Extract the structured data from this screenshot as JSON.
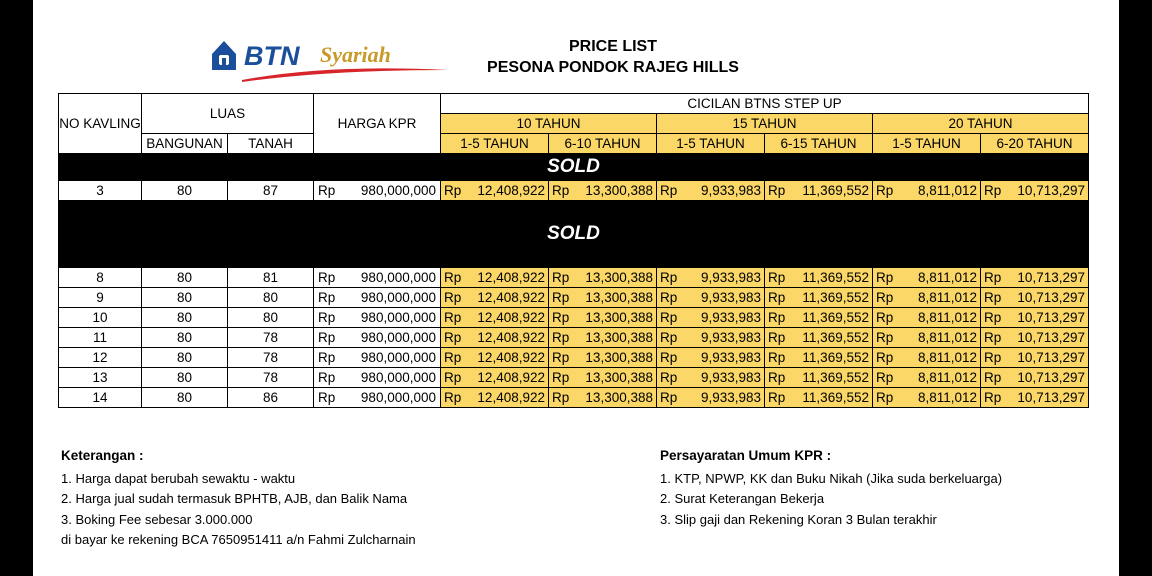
{
  "logo": {
    "brand": "BTN",
    "sub": "Syariah",
    "colors": {
      "blue": "#1b4f9c",
      "gold": "#c89a2a",
      "red": "#d6262b"
    }
  },
  "title": {
    "line1": "PRICE LIST",
    "line2": "PESONA PONDOK RAJEG HILLS"
  },
  "table": {
    "headers": {
      "no": "NO KAVLING",
      "luas": "LUAS",
      "bangunan": "BANGUNAN",
      "tanah": "TANAH",
      "harga": "HARGA KPR",
      "cicilan": "CICILAN BTNS STEP UP",
      "t10": "10 TAHUN",
      "t15": "15 TAHUN",
      "t20": "20 TAHUN",
      "sub": [
        "1-5 TAHUN",
        "6-10 TAHUN",
        "1-5 TAHUN",
        "6-15 TAHUN",
        "1-5 TAHUN",
        "6-20 TAHUN"
      ]
    },
    "sold_label": "SOLD",
    "currency": "Rp",
    "rows": [
      {
        "sold": true
      },
      {
        "no": "3",
        "bangunan": "80",
        "tanah": "87",
        "harga": "980,000,000",
        "c": [
          "12,408,922",
          "13,300,388",
          "9,933,983",
          "11,369,552",
          "8,811,012",
          "10,713,297"
        ]
      },
      {
        "sold": true,
        "tall": true
      },
      {
        "no": "8",
        "bangunan": "80",
        "tanah": "81",
        "harga": "980,000,000",
        "c": [
          "12,408,922",
          "13,300,388",
          "9,933,983",
          "11,369,552",
          "8,811,012",
          "10,713,297"
        ]
      },
      {
        "no": "9",
        "bangunan": "80",
        "tanah": "80",
        "harga": "980,000,000",
        "c": [
          "12,408,922",
          "13,300,388",
          "9,933,983",
          "11,369,552",
          "8,811,012",
          "10,713,297"
        ]
      },
      {
        "no": "10",
        "bangunan": "80",
        "tanah": "80",
        "harga": "980,000,000",
        "c": [
          "12,408,922",
          "13,300,388",
          "9,933,983",
          "11,369,552",
          "8,811,012",
          "10,713,297"
        ]
      },
      {
        "no": "11",
        "bangunan": "80",
        "tanah": "78",
        "harga": "980,000,000",
        "c": [
          "12,408,922",
          "13,300,388",
          "9,933,983",
          "11,369,552",
          "8,811,012",
          "10,713,297"
        ]
      },
      {
        "no": "12",
        "bangunan": "80",
        "tanah": "78",
        "harga": "980,000,000",
        "c": [
          "12,408,922",
          "13,300,388",
          "9,933,983",
          "11,369,552",
          "8,811,012",
          "10,713,297"
        ]
      },
      {
        "no": "13",
        "bangunan": "80",
        "tanah": "78",
        "harga": "980,000,000",
        "c": [
          "12,408,922",
          "13,300,388",
          "9,933,983",
          "11,369,552",
          "8,811,012",
          "10,713,297"
        ]
      },
      {
        "no": "14",
        "bangunan": "80",
        "tanah": "86",
        "harga": "980,000,000",
        "c": [
          "12,408,922",
          "13,300,388",
          "9,933,983",
          "11,369,552",
          "8,811,012",
          "10,713,297"
        ]
      }
    ]
  },
  "keterangan": {
    "title": "Keterangan :",
    "items": [
      "1. Harga dapat berubah sewaktu - waktu",
      "2. Harga jual sudah termasuk BPHTB, AJB, dan Balik Nama",
      "3. Boking Fee sebesar 3.000.000",
      "di bayar ke rekening BCA 7650951411 a/n Fahmi Zulcharnain"
    ]
  },
  "persyaratan": {
    "title": "Persayaratan Umum KPR :",
    "items": [
      "1. KTP, NPWP, KK dan Buku Nikah (Jika suda berkeluarga)",
      "2. Surat Keterangan Bekerja",
      "3. Slip gaji dan Rekening Koran 3 Bulan terakhir"
    ]
  },
  "colors": {
    "yellow": "#fad766",
    "sold_bg": "#000000"
  }
}
